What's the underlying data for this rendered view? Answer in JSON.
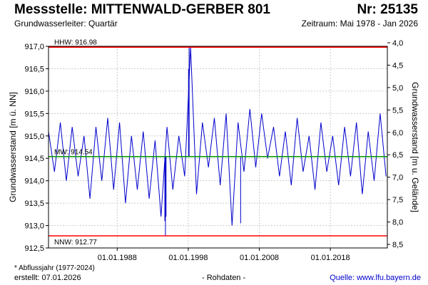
{
  "header": {
    "title": "Messstelle: MITTENWALD-GERBER 801",
    "number": "Nr: 25135",
    "aquifer": "Grundwasserleiter: Quartär",
    "period": "Zeitraum: Mai 1978 - Jan 2026"
  },
  "footer": {
    "note": "* Abflussjahr (1977-2024)",
    "created": "erstellt:  07.01.2026",
    "mode": "- Rohdaten -",
    "source": "Quelle: www.lfu.bayern.de"
  },
  "colors": {
    "series": "#0000cc",
    "hhw": "#ff0000",
    "nnw": "#ff0000",
    "mw": "#009900",
    "grid": "#cccccc",
    "frame": "#000000"
  },
  "chart_data": {
    "type": "line",
    "ylabel": "Grundwasserstand [m ü. NN]",
    "ylabel_right": "Grundwasserstand [m u. Gelände]",
    "ylim": [
      912.5,
      917.0
    ],
    "y_ticks": [
      "917,0",
      "916,5",
      "916,0",
      "915,5",
      "915,0",
      "914,5",
      "914,0",
      "913,5",
      "913,0",
      "912,5"
    ],
    "y_tick_values": [
      917.0,
      916.5,
      916.0,
      915.5,
      915.0,
      914.5,
      914.0,
      913.5,
      913.0,
      912.5
    ],
    "y2_ticks": [
      "4,0",
      "4,5",
      "5,0",
      "5,5",
      "6,0",
      "6,5",
      "7,0",
      "7,5",
      "8,0",
      "8,5"
    ],
    "x_range": [
      "1978-05-01",
      "2026-01-07"
    ],
    "x_ticks": [
      "01.01.1988",
      "01.01.1998",
      "01.01.2008",
      "01.01.2018"
    ],
    "x_tick_dates": [
      "1988-01-01",
      "1998-01-01",
      "2008-01-01",
      "2018-01-01"
    ],
    "grid": true,
    "reference_lines": [
      {
        "label": "HHW: 916.98",
        "value": 916.98,
        "color": "#ff0000"
      },
      {
        "label": "MW: 914.54",
        "value": 914.54,
        "color": "#009900"
      },
      {
        "label": "NNW: 912.77",
        "value": 912.77,
        "color": "#ff0000"
      }
    ],
    "series": [
      {
        "x": [
          "1978-05-01",
          "1979-03-01",
          "1980-01-01",
          "1980-11-01",
          "1981-09-01",
          "1982-07-01",
          "1983-05-01",
          "1984-03-01",
          "1985-01-01",
          "1985-11-01",
          "1986-09-01",
          "1987-07-01",
          "1988-05-01",
          "1989-03-01",
          "1990-01-01",
          "1990-11-01",
          "1991-09-01",
          "1992-07-01",
          "1993-05-01",
          "1994-03-01",
          "1995-01-01",
          "1995-11-01",
          "1996-09-01",
          "1997-07-01",
          "1998-05-01",
          "1999-03-01",
          "2000-01-01",
          "2000-11-01",
          "2001-09-01",
          "2002-07-01",
          "2003-05-01",
          "2004-03-01",
          "2005-01-01",
          "2005-11-01",
          "2006-09-01",
          "2007-07-01",
          "2008-05-01",
          "2009-03-01",
          "2010-01-01",
          "2010-11-01",
          "2011-09-01",
          "2012-07-01",
          "2013-05-01",
          "2014-03-01",
          "2015-01-01",
          "2015-11-01",
          "2016-09-01",
          "2017-07-01",
          "2018-05-01",
          "2019-03-01",
          "2020-01-01",
          "2020-11-01",
          "2021-09-01",
          "2022-07-01",
          "2023-05-01",
          "2024-03-01",
          "2025-01-01",
          "2025-11-01"
        ],
        "values": [
          915.1,
          914.2,
          915.3,
          914.0,
          915.2,
          914.1,
          915.0,
          913.6,
          915.2,
          914.0,
          915.4,
          913.8,
          915.3,
          913.5,
          915.0,
          913.8,
          915.1,
          913.6,
          914.9,
          913.2,
          915.2,
          913.8,
          915.0,
          914.1,
          916.98,
          913.7,
          915.3,
          914.3,
          915.4,
          913.9,
          915.5,
          913.0,
          915.3,
          914.2,
          915.6,
          914.3,
          915.5,
          914.5,
          915.2,
          914.1,
          915.1,
          913.9,
          915.4,
          914.2,
          915.0,
          913.8,
          915.3,
          914.2,
          915.0,
          913.9,
          915.2,
          914.1,
          915.3,
          913.7,
          915.1,
          914.0,
          915.5,
          914.1
        ]
      },
      {
        "x": [
          "1994-09-15",
          "1994-10-15",
          "1994-11-15",
          "1998-01-15",
          "1998-02-15",
          "2005-05-15"
        ],
        "values": [
          913.1,
          912.77,
          913.2,
          916.5,
          916.98,
          913.05
        ]
      }
    ]
  }
}
